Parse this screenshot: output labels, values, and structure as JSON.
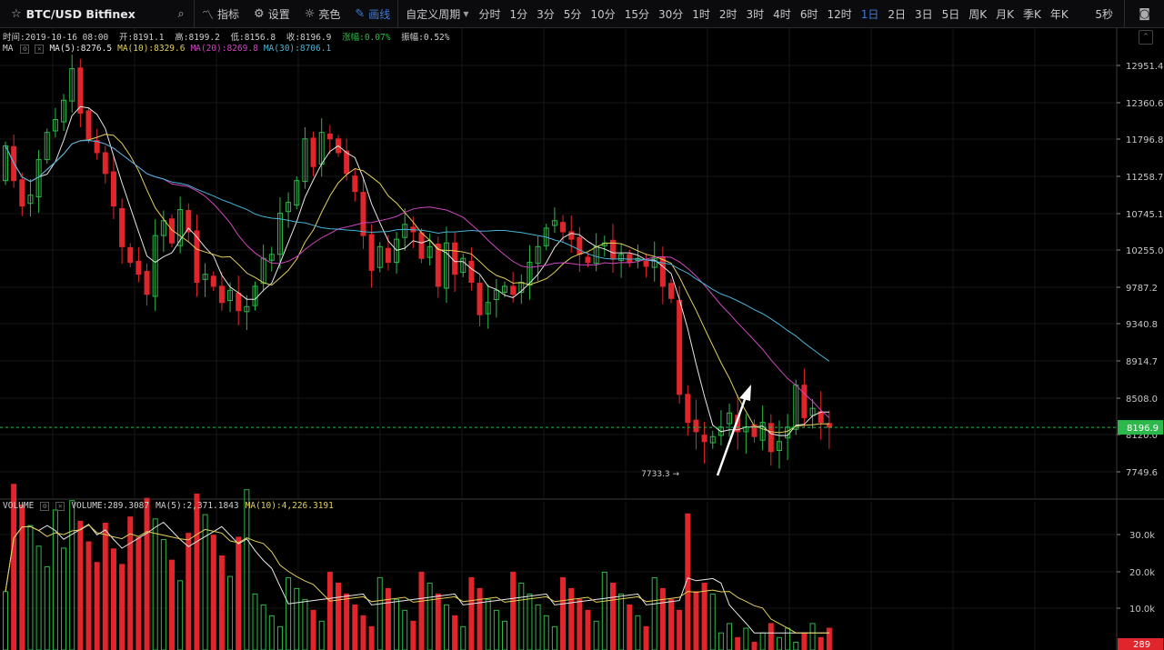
{
  "toolbar": {
    "symbol": "BTC/USD Bitfinex",
    "indicators_label": "指标",
    "settings_label": "设置",
    "theme_label": "亮色",
    "draw_label": "画线",
    "custom_period_label": "自定义周期",
    "periods": [
      "分时",
      "1分",
      "3分",
      "5分",
      "10分",
      "15分",
      "30分",
      "1时",
      "2时",
      "3时",
      "4时",
      "6时",
      "12时",
      "1日",
      "2日",
      "3日",
      "5日",
      "周K",
      "月K",
      "季K",
      "年K"
    ],
    "active_period": "1日",
    "refresh_interval": "5秒"
  },
  "ohlc": {
    "time": "时间:2019-10-16 08:00",
    "open": "开:8191.1",
    "high": "高:8199.2",
    "low": "低:8156.8",
    "close": "收:8196.9",
    "change": "涨幅:0.07%",
    "amplitude": "振幅:0.52%"
  },
  "ma_legend": {
    "label": "MA",
    "ma5": "MA(5):8276.5",
    "ma10": "MA(10):8329.6",
    "ma20": "MA(20):8269.8",
    "ma30": "MA(30):8706.1"
  },
  "volume_legend": {
    "label": "VOLUME",
    "volume": "VOLUME:289.3087",
    "ma5": "MA(5):2,371.1843",
    "ma10": "MA(10):4,226.3191"
  },
  "price_axis": {
    "ticks": [
      "12951.4",
      "12360.6",
      "11796.8",
      "11258.7",
      "10745.1",
      "10255.0",
      "9787.2",
      "9340.8",
      "8914.7",
      "8508.0",
      "8120.0",
      "7749.6"
    ],
    "current_price": "8196.9",
    "low_marker": "7733.3"
  },
  "volume_axis": {
    "ticks": [
      "30.0k",
      "20.0k",
      "10.0k"
    ],
    "current_volume": "289"
  },
  "colors": {
    "up": "#2db84b",
    "down": "#e0262c",
    "accent": "#3e7bd6",
    "ma5": "#e6e6e6",
    "ma10": "#e2cf5a",
    "ma20": "#cf46c1",
    "ma30": "#48b4d6"
  }
}
